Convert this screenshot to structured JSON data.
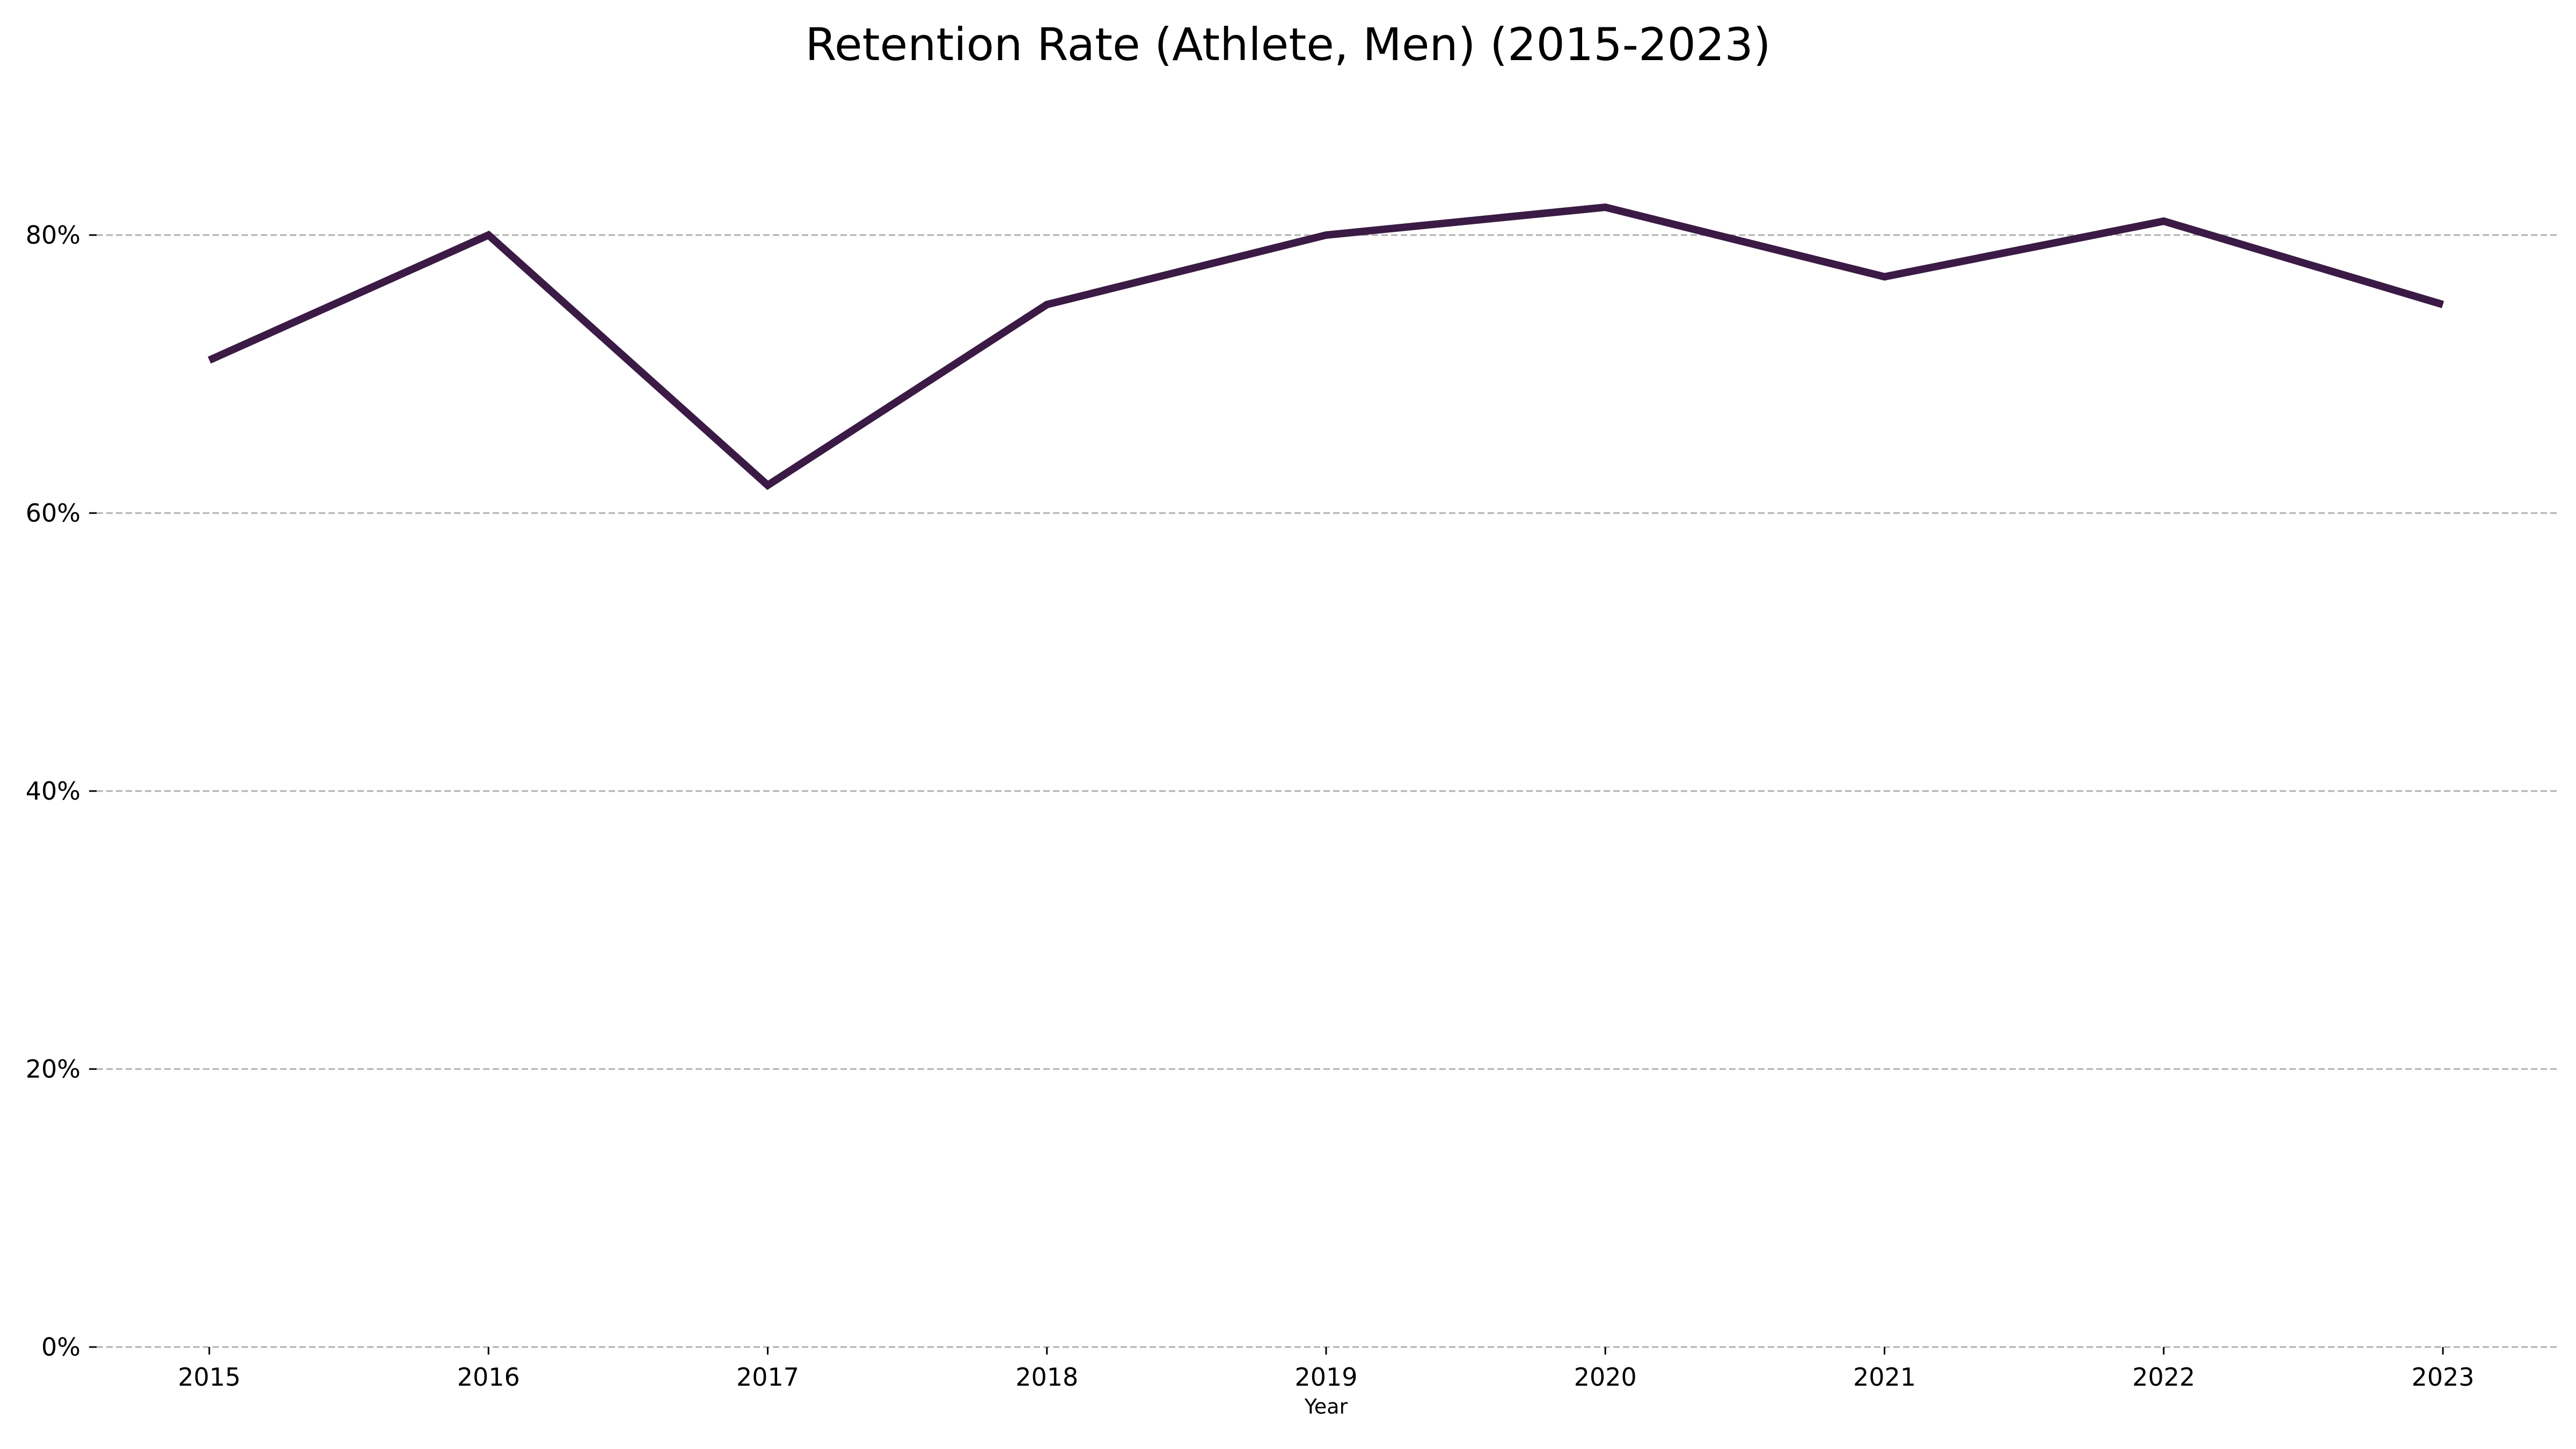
{
  "chart_data": {
    "type": "line",
    "title": "Retention Rate (Athlete, Men) (2015-2023)",
    "xlabel": "Year",
    "ylabel": "",
    "categories": [
      "2015",
      "2016",
      "2017",
      "2018",
      "2019",
      "2020",
      "2021",
      "2022",
      "2023"
    ],
    "series": [
      {
        "values": [
          0.71,
          0.8,
          0.62,
          0.75,
          0.8,
          0.82,
          0.77,
          0.81,
          0.75
        ],
        "color": "#3b1a45"
      }
    ],
    "ylim": [
      0,
      0.9
    ],
    "yticks": [
      0,
      0.2,
      0.4,
      0.6,
      0.8
    ],
    "ytick_labels": [
      "0%",
      "20%",
      "40%",
      "60%",
      "80%"
    ],
    "grid": "horizontal, dashed",
    "legend": "none"
  }
}
